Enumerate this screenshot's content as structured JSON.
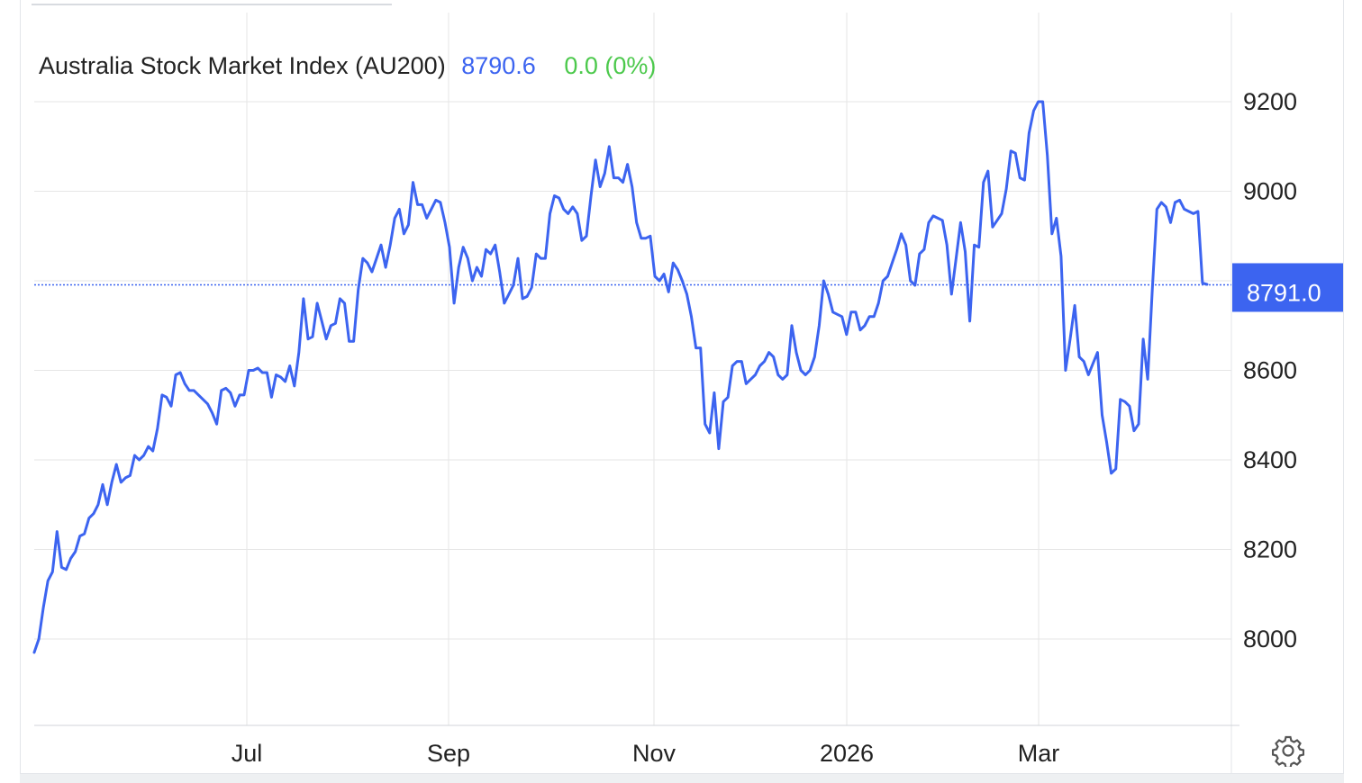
{
  "header": {
    "title": "Australia Stock Market Index (AU200)",
    "last": "8790.6",
    "change": "0.0 (0%)"
  },
  "colors": {
    "line": "#3c64f0",
    "change": "#4cc94c",
    "grid": "#e6e6e6"
  },
  "icons": {
    "settings": "gear-icon"
  },
  "chart_data": {
    "type": "line",
    "title": "Australia Stock Market Index (AU200)",
    "x_ticks": [
      "Jul",
      "Sep",
      "Nov",
      "2026",
      "Mar"
    ],
    "y_ticks": [
      8000,
      8200,
      8400,
      8600,
      9000,
      9200
    ],
    "ylim": [
      7800,
      9400
    ],
    "grid": true,
    "current_value_label": "8791.0",
    "current_value": 8791.0,
    "series": [
      {
        "values": [
          7970,
          8000,
          8070,
          8130,
          8150,
          8240,
          8160,
          8155,
          8180,
          8195,
          8230,
          8235,
          8270,
          8280,
          8300,
          8345,
          8300,
          8350,
          8390,
          8350,
          8360,
          8365,
          8410,
          8400,
          8410,
          8430,
          8420,
          8470,
          8545,
          8540,
          8520,
          8590,
          8595,
          8570,
          8555,
          8555,
          8545,
          8535,
          8525,
          8505,
          8480,
          8555,
          8560,
          8550,
          8520,
          8545,
          8545,
          8600,
          8600,
          8605,
          8595,
          8595,
          8540,
          8590,
          8585,
          8575,
          8610,
          8565,
          8640,
          8760,
          8670,
          8675,
          8750,
          8710,
          8670,
          8700,
          8705,
          8760,
          8750,
          8665,
          8665,
          8780,
          8850,
          8840,
          8820,
          8850,
          8880,
          8830,
          8880,
          8940,
          8960,
          8905,
          8925,
          9020,
          8970,
          8970,
          8940,
          8960,
          8980,
          8975,
          8930,
          8875,
          8750,
          8830,
          8875,
          8850,
          8800,
          8830,
          8810,
          8870,
          8860,
          8880,
          8820,
          8750,
          8770,
          8790,
          8850,
          8760,
          8765,
          8785,
          8860,
          8850,
          8850,
          8950,
          8990,
          8985,
          8960,
          8950,
          8965,
          8950,
          8890,
          8900,
          8990,
          9070,
          9010,
          9040,
          9100,
          9030,
          9030,
          9020,
          9060,
          9010,
          8930,
          8895,
          8895,
          8900,
          8810,
          8800,
          8815,
          8775,
          8840,
          8825,
          8800,
          8770,
          8720,
          8650,
          8650,
          8480,
          8460,
          8550,
          8425,
          8530,
          8540,
          8610,
          8620,
          8620,
          8570,
          8580,
          8590,
          8610,
          8620,
          8640,
          8630,
          8590,
          8580,
          8590,
          8700,
          8640,
          8600,
          8590,
          8600,
          8630,
          8700,
          8800,
          8770,
          8730,
          8725,
          8720,
          8680,
          8730,
          8730,
          8690,
          8700,
          8720,
          8720,
          8750,
          8800,
          8810,
          8840,
          8870,
          8905,
          8880,
          8800,
          8790,
          8860,
          8870,
          8930,
          8945,
          8940,
          8935,
          8880,
          8770,
          8850,
          8930,
          8865,
          8710,
          8880,
          8875,
          9020,
          9045,
          8920,
          8935,
          8950,
          9005,
          9090,
          9085,
          9030,
          9025,
          9130,
          9180,
          9200,
          9200,
          9080,
          8905,
          8940,
          8855,
          8600,
          8670,
          8745,
          8630,
          8620,
          8590,
          8615,
          8640,
          8500,
          8440,
          8370,
          8380,
          8535,
          8530,
          8520,
          8465,
          8480,
          8670,
          8580,
          8780,
          8960,
          8975,
          8965,
          8930,
          8975,
          8980,
          8960,
          8955,
          8950,
          8955,
          8795,
          8792
        ]
      }
    ]
  }
}
